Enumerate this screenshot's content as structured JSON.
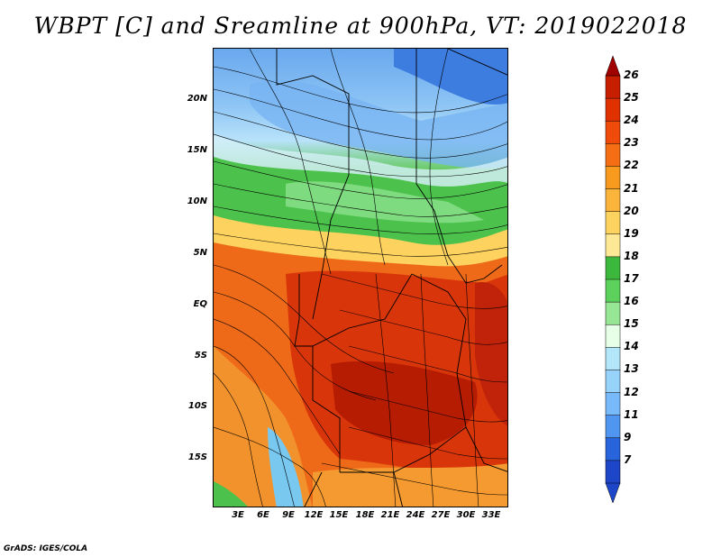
{
  "title": "WBPT [C] and Sreamline at 900hPa, VT: 2019022018",
  "credit": "GrADS: IGES/COLA",
  "map": {
    "lat_labels": [
      "20N",
      "15N",
      "10N",
      "5N",
      "EQ",
      "5S",
      "10S",
      "15S"
    ],
    "lon_labels": [
      "3E",
      "6E",
      "9E",
      "12E",
      "15E",
      "18E",
      "21E",
      "24E",
      "27E",
      "30E",
      "33E"
    ]
  },
  "colorbar": {
    "levels": [
      "26",
      "25",
      "24",
      "23",
      "22",
      "21",
      "20",
      "19",
      "18",
      "17",
      "16",
      "15",
      "14",
      "13",
      "12",
      "11",
      "9",
      "7"
    ],
    "colors": [
      "#c81e00",
      "#e03200",
      "#f04b0a",
      "#f56e14",
      "#f89a1e",
      "#fbb43c",
      "#fdd25e",
      "#fde896",
      "#3cb83c",
      "#5cd25c",
      "#96e696",
      "#e6ffe6",
      "#b4e6fa",
      "#96d2fa",
      "#78b9fa",
      "#5096f0",
      "#2864dc",
      "#1e46c8"
    ],
    "under_color": "#1e46c8",
    "over_color": "#a00000"
  }
}
